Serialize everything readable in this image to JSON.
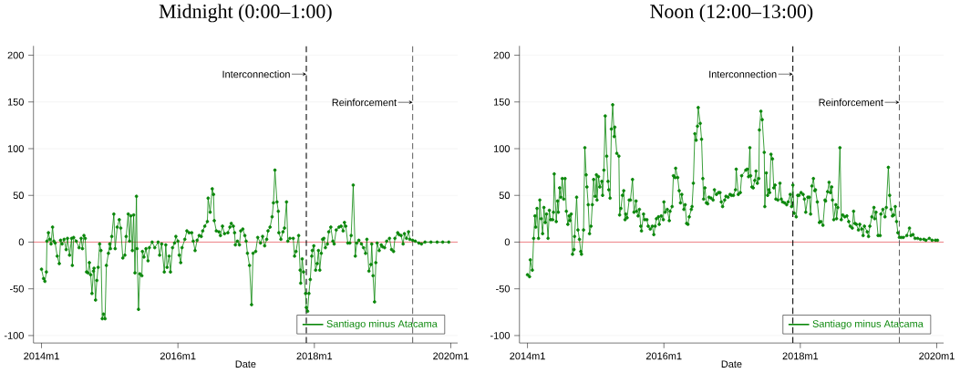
{
  "chart_data": [
    {
      "type": "line",
      "title": "Midnight (0:00–1:00)",
      "xlabel": "Date",
      "x": [
        "2014-01-01",
        "2014-01-12",
        "2014-01-19",
        "2014-01-27",
        "2014-01-30",
        "2014-02-07",
        "2014-02-14",
        "2014-02-21",
        "2014-03-01",
        "2014-03-08",
        "2014-03-15",
        "2014-03-26",
        "2014-04-06",
        "2014-04-13",
        "2014-04-21",
        "2014-05-02",
        "2014-05-13",
        "2014-05-20",
        "2014-05-31",
        "2014-06-11",
        "2014-06-15",
        "2014-06-22",
        "2014-07-06",
        "2014-07-21",
        "2014-08-01",
        "2014-08-08",
        "2014-08-16",
        "2014-08-23",
        "2014-08-30",
        "2014-09-07",
        "2014-09-14",
        "2014-09-21",
        "2014-09-28",
        "2014-10-06",
        "2014-10-09",
        "2014-10-17",
        "2014-10-24",
        "2014-10-31",
        "2014-11-08",
        "2014-11-15",
        "2014-11-22",
        "2014-11-29",
        "2014-12-07",
        "2014-12-14",
        "2014-12-25",
        "2015-01-01",
        "2015-01-05",
        "2015-01-12",
        "2015-01-23",
        "2015-01-30",
        "2015-02-10",
        "2015-02-21",
        "2015-03-01",
        "2015-03-12",
        "2015-03-23",
        "2015-03-30",
        "2015-04-10",
        "2015-04-17",
        "2015-04-24",
        "2015-05-02",
        "2015-05-09",
        "2015-05-16",
        "2015-05-24",
        "2015-05-27",
        "2015-06-04",
        "2015-06-11",
        "2015-06-22",
        "2015-06-25",
        "2015-07-03",
        "2015-07-14",
        "2015-07-25",
        "2015-08-01",
        "2015-08-16",
        "2015-08-30",
        "2015-09-17",
        "2015-09-25",
        "2015-10-06",
        "2015-10-20",
        "2015-10-28",
        "2015-11-04",
        "2015-11-15",
        "2015-11-22",
        "2015-12-03",
        "2015-12-14",
        "2015-12-21",
        "2016-01-01",
        "2016-01-08",
        "2016-01-16",
        "2016-01-23",
        "2016-02-07",
        "2016-02-18",
        "2016-03-01",
        "2016-03-15",
        "2016-03-23",
        "2016-04-02",
        "2016-04-13",
        "2016-04-24",
        "2016-05-05",
        "2016-05-13",
        "2016-05-24",
        "2016-06-07",
        "2016-06-11",
        "2016-06-22",
        "2016-07-03",
        "2016-07-10",
        "2016-07-14",
        "2016-07-25",
        "2016-08-08",
        "2016-08-16",
        "2016-08-27",
        "2016-09-07",
        "2016-09-25",
        "2016-10-06",
        "2016-10-13",
        "2016-10-24",
        "2016-10-31",
        "2016-11-04",
        "2016-11-15",
        "2016-11-26",
        "2016-12-03",
        "2016-12-14",
        "2016-12-25",
        "2017-01-01",
        "2017-01-08",
        "2017-01-19",
        "2017-01-30",
        "2017-02-07",
        "2017-02-21",
        "2017-03-04",
        "2017-03-19",
        "2017-03-30",
        "2017-04-10",
        "2017-04-21",
        "2017-04-28",
        "2017-05-09",
        "2017-05-20",
        "2017-05-27",
        "2017-06-04",
        "2017-06-15",
        "2017-06-22",
        "2017-06-25",
        "2017-07-06",
        "2017-07-17",
        "2017-07-25",
        "2017-08-05",
        "2017-08-12",
        "2017-08-23",
        "2017-09-10",
        "2017-09-17",
        "2017-09-25",
        "2017-10-09",
        "2017-10-17",
        "2017-10-20",
        "2017-10-28",
        "2017-11-04",
        "2017-11-15",
        "2017-11-19",
        "2017-11-26",
        "2017-12-03",
        "2017-12-10",
        "2017-12-18",
        "2017-12-21",
        "2017-12-29",
        "2018-01-08",
        "2018-01-16",
        "2018-01-23",
        "2018-01-30",
        "2018-02-07",
        "2018-02-14",
        "2018-02-21",
        "2018-03-01",
        "2018-03-12",
        "2018-03-19",
        "2018-03-30",
        "2018-04-10",
        "2018-04-17",
        "2018-04-28",
        "2018-05-13",
        "2018-05-24",
        "2018-06-04",
        "2018-06-11",
        "2018-06-18",
        "2018-06-29",
        "2018-07-10",
        "2018-07-17",
        "2018-07-28",
        "2018-08-08",
        "2018-08-16",
        "2018-08-27",
        "2018-09-10",
        "2018-09-21",
        "2018-10-02",
        "2018-10-09",
        "2018-10-20",
        "2018-10-31",
        "2018-11-04",
        "2018-11-11",
        "2018-11-19",
        "2018-11-26",
        "2018-12-03",
        "2018-12-14",
        "2018-12-25",
        "2019-01-01",
        "2019-01-12",
        "2019-01-23",
        "2019-02-07",
        "2019-02-18",
        "2019-03-01",
        "2019-03-08",
        "2019-03-23",
        "2019-03-30",
        "2019-04-10",
        "2019-04-21",
        "2019-04-28",
        "2019-05-09",
        "2019-05-20",
        "2019-05-27",
        "2019-06-11",
        "2019-06-25",
        "2019-07-14",
        "2019-07-28",
        "2019-08-16",
        "2019-09-17",
        "2019-10-20",
        "2019-11-19",
        "2019-12-21"
      ],
      "series": [
        {
          "name": "Santiago minus Atacama",
          "color": "#0a870a",
          "values": [
            -29,
            -39,
            -42,
            -32,
            1,
            10,
            3,
            -2,
            16,
            1,
            -1,
            -15,
            -23,
            2,
            -2,
            3,
            -8,
            4,
            -14,
            4,
            -25,
            5,
            1,
            -6,
            4,
            -7,
            7,
            4,
            -32,
            -33,
            -22,
            -35,
            -55,
            -31,
            -28,
            -62,
            -41,
            -27,
            -2,
            -9,
            -82,
            -77,
            -82,
            -25,
            -12,
            -2,
            -7,
            6,
            30,
            -7,
            16,
            24,
            15,
            -17,
            -14,
            6,
            30,
            1,
            28,
            -9,
            29,
            -33,
            49,
            -7,
            -72,
            -34,
            -36,
            -10,
            -16,
            -7,
            -20,
            -6,
            0,
            -6,
            0,
            -14,
            -2,
            -32,
            -3,
            -27,
            -15,
            -32,
            -6,
            -1,
            6,
            1,
            -14,
            -22,
            -6,
            3,
            12,
            10,
            10,
            1,
            -9,
            2,
            7,
            6,
            12,
            17,
            22,
            47,
            32,
            57,
            51,
            23,
            12,
            11,
            7,
            17,
            9,
            10,
            16,
            20,
            17,
            10,
            -3,
            1,
            -3,
            12,
            14,
            7,
            1,
            -12,
            -25,
            -67,
            -12,
            -10,
            5,
            -1,
            6,
            -4,
            3,
            12,
            16,
            27,
            42,
            77,
            43,
            33,
            10,
            3,
            11,
            15,
            43,
            1,
            4,
            4,
            -15,
            -10,
            7,
            -30,
            -44,
            -18,
            -32,
            -55,
            -70,
            -74,
            -55,
            -40,
            -15,
            -9,
            -4,
            -30,
            -23,
            -9,
            -30,
            -12,
            3,
            4,
            -6,
            -2,
            11,
            16,
            1,
            -2,
            13,
            16,
            17,
            12,
            21,
            17,
            -1,
            -1,
            7,
            61,
            -15,
            -1,
            2,
            -2,
            -6,
            -12,
            3,
            -31,
            -24,
            -2,
            -36,
            -64,
            -22,
            -1,
            -9,
            -3,
            -5,
            -6,
            1,
            4,
            -8,
            -10,
            4,
            10,
            8,
            7,
            -2,
            9,
            4,
            11,
            3,
            2,
            1,
            -1,
            -2,
            0,
            0,
            0,
            0,
            0
          ]
        }
      ],
      "xlim": [
        "2013-11-19",
        "2020-02-07"
      ],
      "ylim": [
        -108,
        210
      ],
      "xticks": [
        {
          "value": "2014-01",
          "label": "2014m1"
        },
        {
          "value": "2016-01",
          "label": "2016m1"
        },
        {
          "value": "2018-01",
          "label": "2018m1"
        },
        {
          "value": "2020-01",
          "label": "2020m1"
        }
      ],
      "yticks": [
        -100,
        -50,
        0,
        50,
        100,
        150,
        200
      ],
      "ref_lines": [
        {
          "axis": "y",
          "value": 0,
          "color": "#e8202a",
          "line_style": "solid"
        },
        {
          "axis": "x",
          "value": "2017-11-19",
          "label": "Interconnection",
          "color": "#000000",
          "line_style": "dashed"
        },
        {
          "axis": "x",
          "value": "2019-06-11",
          "label": "Reinforcement",
          "color": "#666666",
          "line_style": "dashed"
        }
      ],
      "grid": "y",
      "legend": "bottom right",
      "marker": "circle",
      "line_style": "solid"
    },
    {
      "type": "line",
      "title": "Noon (12:00–13:00)",
      "xlabel": "Date",
      "x": [
        "2014-01-01",
        "2014-01-12",
        "2014-01-16",
        "2014-01-27",
        "2014-02-03",
        "2014-02-10",
        "2014-02-14",
        "2014-02-21",
        "2014-03-01",
        "2014-03-08",
        "2014-03-15",
        "2014-03-23",
        "2014-03-30",
        "2014-04-06",
        "2014-04-13",
        "2014-04-21",
        "2014-04-28",
        "2014-05-05",
        "2014-05-16",
        "2014-05-20",
        "2014-05-24",
        "2014-06-04",
        "2014-06-11",
        "2014-06-15",
        "2014-06-22",
        "2014-06-29",
        "2014-07-06",
        "2014-07-14",
        "2014-07-21",
        "2014-07-28",
        "2014-08-05",
        "2014-08-12",
        "2014-08-16",
        "2014-08-23",
        "2014-08-30",
        "2014-09-07",
        "2014-09-10",
        "2014-09-21",
        "2014-09-28",
        "2014-10-06",
        "2014-10-13",
        "2014-10-17",
        "2014-10-28",
        "2014-11-04",
        "2014-11-11",
        "2014-11-15",
        "2014-11-22",
        "2014-11-29",
        "2014-12-07",
        "2014-12-14",
        "2014-12-21",
        "2014-12-29",
        "2015-01-05",
        "2015-01-08",
        "2015-01-16",
        "2015-01-23",
        "2015-02-03",
        "2015-02-07",
        "2015-02-14",
        "2015-02-21",
        "2015-03-01",
        "2015-03-08",
        "2015-03-12",
        "2015-03-19",
        "2015-03-26",
        "2015-04-02",
        "2015-04-10",
        "2015-04-13",
        "2015-04-24",
        "2015-05-05",
        "2015-05-09",
        "2015-05-16",
        "2015-05-24",
        "2015-05-31",
        "2015-06-07",
        "2015-06-11",
        "2015-06-18",
        "2015-06-29",
        "2015-07-06",
        "2015-07-17",
        "2015-07-25",
        "2015-08-05",
        "2015-08-08",
        "2015-08-16",
        "2015-08-23",
        "2015-08-30",
        "2015-09-03",
        "2015-09-14",
        "2015-09-21",
        "2015-10-02",
        "2015-10-09",
        "2015-10-20",
        "2015-10-31",
        "2015-11-08",
        "2015-11-15",
        "2015-11-22",
        "2015-12-03",
        "2015-12-07",
        "2015-12-18",
        "2015-12-29",
        "2016-01-01",
        "2016-01-08",
        "2016-01-19",
        "2016-01-30",
        "2016-02-03",
        "2016-02-14",
        "2016-02-21",
        "2016-03-01",
        "2016-03-04",
        "2016-03-15",
        "2016-03-23",
        "2016-03-30",
        "2016-04-06",
        "2016-04-17",
        "2016-04-24",
        "2016-05-02",
        "2016-05-09",
        "2016-05-16",
        "2016-05-27",
        "2016-05-31",
        "2016-06-07",
        "2016-06-15",
        "2016-06-22",
        "2016-06-29",
        "2016-07-03",
        "2016-07-14",
        "2016-07-21",
        "2016-07-28",
        "2016-08-01",
        "2016-08-08",
        "2016-08-16",
        "2016-08-23",
        "2016-08-30",
        "2016-09-10",
        "2016-09-21",
        "2016-09-28",
        "2016-10-09",
        "2016-10-20",
        "2016-10-28",
        "2016-11-04",
        "2016-11-11",
        "2016-11-22",
        "2016-11-29",
        "2016-12-10",
        "2016-12-21",
        "2016-12-29",
        "2017-01-08",
        "2017-01-19",
        "2017-01-23",
        "2017-02-03",
        "2017-02-14",
        "2017-02-21",
        "2017-03-15",
        "2017-03-23",
        "2017-03-30",
        "2017-04-06",
        "2017-04-10",
        "2017-04-17",
        "2017-04-24",
        "2017-05-02",
        "2017-05-09",
        "2017-05-16",
        "2017-05-24",
        "2017-05-27",
        "2017-06-04",
        "2017-06-11",
        "2017-06-22",
        "2017-06-25",
        "2017-07-03",
        "2017-07-10",
        "2017-07-17",
        "2017-07-21",
        "2017-07-28",
        "2017-08-05",
        "2017-08-12",
        "2017-08-19",
        "2017-08-23",
        "2017-09-03",
        "2017-09-14",
        "2017-09-21",
        "2017-09-28",
        "2017-10-09",
        "2017-10-20",
        "2017-10-28",
        "2017-11-08",
        "2017-11-15",
        "2017-11-22",
        "2017-11-29",
        "2017-12-10",
        "2017-12-18",
        "2017-12-25",
        "2018-01-05",
        "2018-01-16",
        "2018-01-23",
        "2018-01-30",
        "2018-02-10",
        "2018-02-18",
        "2018-02-25",
        "2018-03-04",
        "2018-03-12",
        "2018-03-19",
        "2018-03-23",
        "2018-04-02",
        "2018-04-13",
        "2018-04-21",
        "2018-05-02",
        "2018-05-13",
        "2018-05-16",
        "2018-05-27",
        "2018-06-04",
        "2018-06-11",
        "2018-06-18",
        "2018-06-22",
        "2018-06-29",
        "2018-07-10",
        "2018-07-14",
        "2018-07-21",
        "2018-08-01",
        "2018-08-08",
        "2018-08-16",
        "2018-08-27",
        "2018-09-07",
        "2018-09-17",
        "2018-09-25",
        "2018-10-06",
        "2018-10-13",
        "2018-10-20",
        "2018-10-28",
        "2018-11-08",
        "2018-11-15",
        "2018-11-26",
        "2018-12-03",
        "2018-12-10",
        "2018-12-25",
        "2019-01-01",
        "2019-01-08",
        "2019-01-19",
        "2019-01-30",
        "2019-02-03",
        "2019-02-10",
        "2019-02-21",
        "2019-03-04",
        "2019-03-08",
        "2019-03-19",
        "2019-03-30",
        "2019-04-06",
        "2019-04-17",
        "2019-04-24",
        "2019-05-02",
        "2019-05-09",
        "2019-05-16",
        "2019-05-24",
        "2019-05-31",
        "2019-06-07",
        "2019-06-15",
        "2019-06-25",
        "2019-07-06",
        "2019-07-25",
        "2019-08-08",
        "2019-08-16",
        "2019-08-27",
        "2019-09-07",
        "2019-09-21",
        "2019-10-06",
        "2019-10-24",
        "2019-11-04",
        "2019-11-22",
        "2019-12-07",
        "2019-12-25",
        "2020-01-05"
      ],
      "series": [
        {
          "name": "Santiago minus Atacama",
          "color": "#0a870a",
          "values": [
            -35,
            -37,
            -19,
            -30,
            4,
            28,
            16,
            36,
            4,
            45,
            25,
            9,
            37,
            21,
            30,
            4,
            34,
            24,
            24,
            32,
            73,
            22,
            44,
            32,
            58,
            48,
            68,
            46,
            68,
            33,
            19,
            28,
            23,
            30,
            -13,
            -8,
            6,
            48,
            13,
            3,
            -10,
            -13,
            13,
            101,
            72,
            59,
            40,
            9,
            17,
            40,
            67,
            49,
            72,
            45,
            70,
            59,
            65,
            50,
            77,
            135,
            92,
            65,
            56,
            47,
            121,
            147,
            113,
            123,
            95,
            92,
            29,
            36,
            50,
            55,
            24,
            30,
            26,
            45,
            45,
            67,
            32,
            44,
            33,
            28,
            35,
            17,
            12,
            30,
            24,
            24,
            17,
            14,
            17,
            8,
            17,
            25,
            27,
            19,
            28,
            24,
            43,
            32,
            35,
            23,
            33,
            38,
            71,
            69,
            79,
            69,
            55,
            42,
            51,
            35,
            40,
            20,
            19,
            27,
            35,
            38,
            63,
            116,
            109,
            124,
            144,
            127,
            110,
            68,
            46,
            58,
            42,
            41,
            48,
            47,
            45,
            56,
            51,
            53,
            53,
            43,
            38,
            45,
            49,
            48,
            51,
            50,
            50,
            56,
            78,
            51,
            53,
            71,
            77,
            78,
            70,
            101,
            71,
            59,
            58,
            66,
            76,
            63,
            68,
            120,
            140,
            131,
            96,
            38,
            74,
            50,
            56,
            53,
            94,
            89,
            58,
            61,
            46,
            45,
            63,
            46,
            43,
            42,
            40,
            43,
            51,
            38,
            61,
            31,
            27,
            50,
            50,
            53,
            51,
            46,
            32,
            48,
            48,
            30,
            60,
            68,
            55,
            56,
            43,
            21,
            22,
            18,
            45,
            44,
            54,
            64,
            53,
            59,
            45,
            24,
            40,
            25,
            37,
            101,
            24,
            29,
            27,
            28,
            22,
            17,
            15,
            33,
            20,
            19,
            13,
            19,
            14,
            7,
            17,
            11,
            6,
            17,
            27,
            37,
            25,
            32,
            7,
            7,
            30,
            35,
            27,
            37,
            80,
            50,
            35,
            28,
            29,
            38,
            22,
            10,
            5,
            5,
            5,
            7,
            15,
            7,
            8,
            4,
            4,
            3,
            3,
            2,
            4,
            2,
            2,
            2
          ]
        }
      ],
      "xlim": [
        "2013-11-19",
        "2020-02-07"
      ],
      "ylim": [
        -108,
        210
      ],
      "xticks": [
        {
          "value": "2014-01",
          "label": "2014m1"
        },
        {
          "value": "2016-01",
          "label": "2016m1"
        },
        {
          "value": "2018-01",
          "label": "2018m1"
        },
        {
          "value": "2020-01",
          "label": "2020m1"
        }
      ],
      "yticks": [
        -100,
        -50,
        0,
        50,
        100,
        150,
        200
      ],
      "ref_lines": [
        {
          "axis": "y",
          "value": 0,
          "color": "#e8202a",
          "line_style": "solid"
        },
        {
          "axis": "x",
          "value": "2017-11-22",
          "label": "Interconnection",
          "color": "#000000",
          "line_style": "dashed"
        },
        {
          "axis": "x",
          "value": "2019-06-15",
          "label": "Reinforcement",
          "color": "#666666",
          "line_style": "dashed"
        }
      ],
      "grid": "y",
      "legend": "bottom right",
      "marker": "circle",
      "line_style": "solid"
    }
  ]
}
